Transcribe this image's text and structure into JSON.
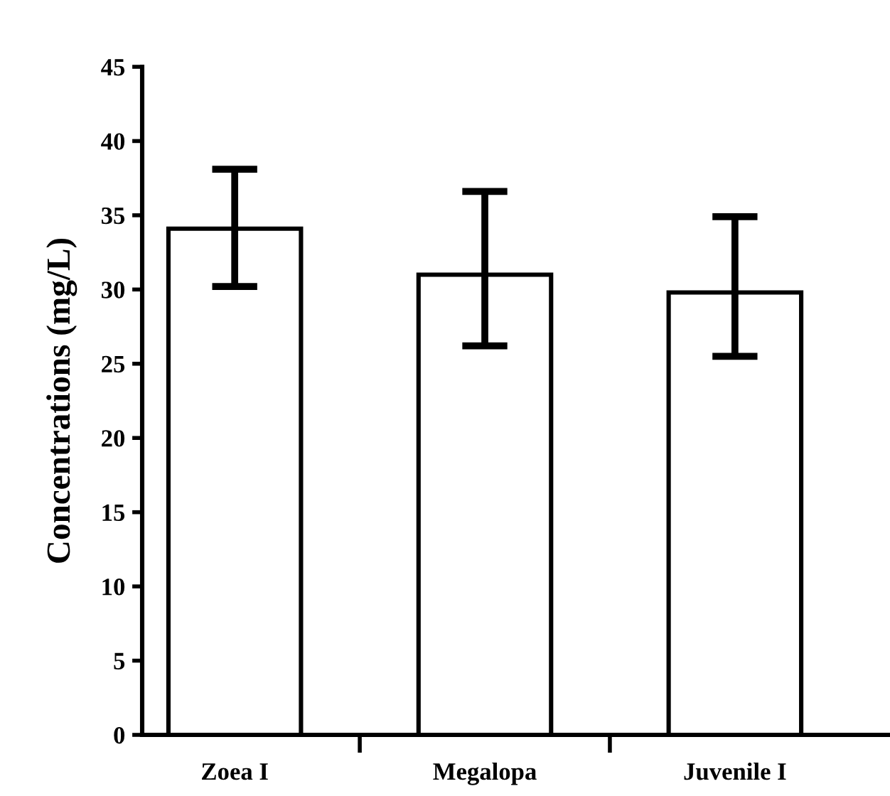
{
  "chart_data": {
    "type": "bar",
    "ylabel": "Concentrations (mg/L)",
    "categories": [
      "Zoea I",
      "Megalopa",
      "Juvenile I"
    ],
    "values": [
      34.1,
      31.0,
      29.8
    ],
    "errors": [
      [
        30.2,
        38.1
      ],
      [
        26.2,
        36.6
      ],
      [
        25.5,
        34.9
      ]
    ],
    "color": "#ffffff",
    "ylim": [
      0,
      45
    ],
    "yticks": [
      0,
      5,
      10,
      15,
      20,
      25,
      30,
      35,
      40,
      45
    ],
    "grid": false,
    "legend": false
  }
}
